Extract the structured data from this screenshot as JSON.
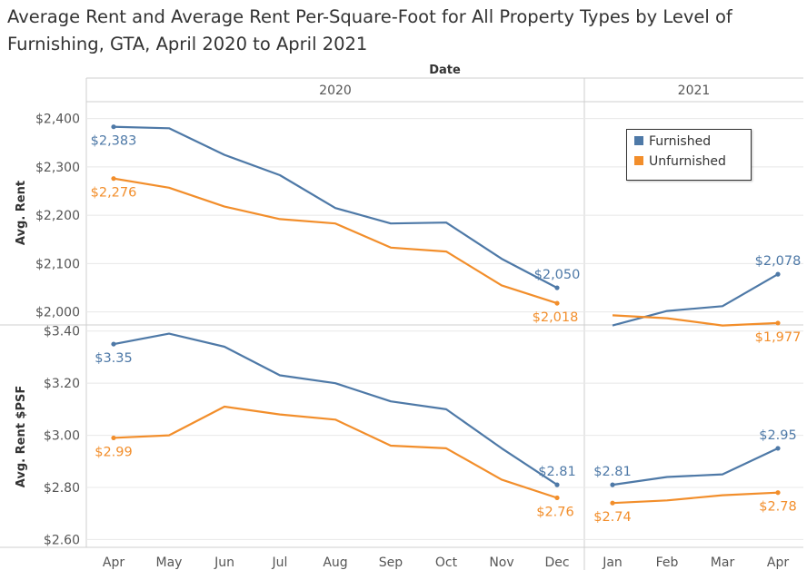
{
  "title": "Average Rent and Average Rent Per-Square-Foot for All Property Types by Level of Furnishing, GTA, April 2020 to April 2021",
  "colors": {
    "furnished": "#4e79a7",
    "unfurnished": "#f28e2b",
    "grid": "#e8e8e8",
    "divider": "#cfcfcf"
  },
  "chart_data": {
    "type": "line",
    "column_header": "Date",
    "years": [
      "2020",
      "2021"
    ],
    "categories": [
      "Apr",
      "May",
      "Jun",
      "Jul",
      "Aug",
      "Sep",
      "Oct",
      "Nov",
      "Dec",
      "Jan",
      "Feb",
      "Mar",
      "Apr"
    ],
    "year_of_category": [
      "2020",
      "2020",
      "2020",
      "2020",
      "2020",
      "2020",
      "2020",
      "2020",
      "2020",
      "2021",
      "2021",
      "2021",
      "2021"
    ],
    "legend": {
      "placement": "top-right",
      "entries": [
        "Furnished",
        "Unfurnished"
      ]
    },
    "panels": [
      {
        "ylabel": "Avg. Rent",
        "ylim": [
          1975,
          2435
        ],
        "ticks": [
          2000,
          2100,
          2200,
          2300,
          2400
        ],
        "tick_labels": [
          "$2,000",
          "$2,100",
          "$2,200",
          "$2,300",
          "$2,400"
        ],
        "series": [
          {
            "name": "Furnished",
            "values": [
              2383,
              2380,
              2325,
              2283,
              2215,
              2183,
              2185,
              2110,
              2050,
              1972,
              2002,
              2012,
              2078
            ]
          },
          {
            "name": "Unfurnished",
            "values": [
              2276,
              2257,
              2218,
              2192,
              2183,
              2133,
              2125,
              2055,
              2018,
              1993,
              1987,
              1972,
              1977
            ]
          }
        ],
        "data_labels": [
          {
            "series": 0,
            "index": 0,
            "text": "$2,383"
          },
          {
            "series": 0,
            "index": 8,
            "text": "$2,050"
          },
          {
            "series": 0,
            "index": 12,
            "text": "$2,078"
          },
          {
            "series": 1,
            "index": 0,
            "text": "$2,276"
          },
          {
            "series": 1,
            "index": 8,
            "text": "$2,018"
          },
          {
            "series": 1,
            "index": 12,
            "text": "$1,977"
          }
        ]
      },
      {
        "ylabel": "Avg. Rent $PSF",
        "ylim": [
          2.57,
          3.42
        ],
        "ticks": [
          2.6,
          2.8,
          3.0,
          3.2,
          3.4
        ],
        "tick_labels": [
          "$2.60",
          "$2.80",
          "$3.00",
          "$3.20",
          "$3.40"
        ],
        "series": [
          {
            "name": "Furnished",
            "values": [
              3.35,
              3.39,
              3.34,
              3.23,
              3.2,
              3.13,
              3.1,
              2.95,
              2.81,
              2.81,
              2.84,
              2.85,
              2.95
            ]
          },
          {
            "name": "Unfurnished",
            "values": [
              2.99,
              3.0,
              3.11,
              3.08,
              3.06,
              2.96,
              2.95,
              2.83,
              2.76,
              2.74,
              2.75,
              2.77,
              2.78
            ]
          }
        ],
        "data_labels": [
          {
            "series": 0,
            "index": 0,
            "text": "$3.35"
          },
          {
            "series": 0,
            "index": 8,
            "text": "$2.81"
          },
          {
            "series": 0,
            "index": 9,
            "text": "$2.81"
          },
          {
            "series": 0,
            "index": 12,
            "text": "$2.95"
          },
          {
            "series": 1,
            "index": 0,
            "text": "$2.99"
          },
          {
            "series": 1,
            "index": 8,
            "text": "$2.76"
          },
          {
            "series": 1,
            "index": 9,
            "text": "$2.74"
          },
          {
            "series": 1,
            "index": 12,
            "text": "$2.78"
          }
        ]
      }
    ]
  }
}
